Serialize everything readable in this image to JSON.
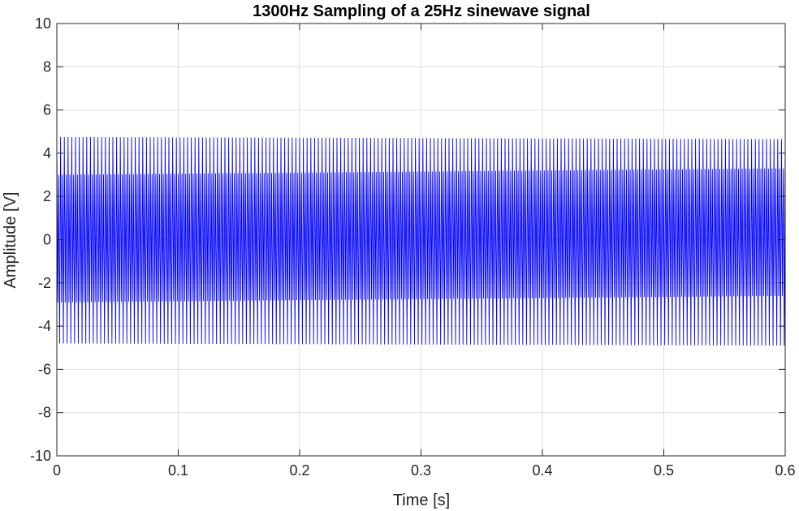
{
  "chart_data": {
    "type": "line",
    "title": "1300Hz Sampling of a 25Hz sinewave signal",
    "xlabel": "Time [s]",
    "ylabel": "Amplitude [V]",
    "xlim": [
      0,
      0.6
    ],
    "ylim": [
      -10,
      10
    ],
    "xticks": [
      0,
      0.1,
      0.2,
      0.3,
      0.4,
      0.5,
      0.6
    ],
    "xtick_labels": [
      "0",
      "0.1",
      "0.2",
      "0.3",
      "0.4",
      "0.5",
      "0.6"
    ],
    "yticks": [
      -10,
      -8,
      -6,
      -4,
      -2,
      0,
      2,
      4,
      6,
      8,
      10
    ],
    "ytick_labels": [
      "-10",
      "-8",
      "-6",
      "-4",
      "-2",
      "0",
      "2",
      "4",
      "6",
      "8",
      "10"
    ],
    "grid": true,
    "series": [
      {
        "color": "#0000ff",
        "sample_rate_hz": 1300,
        "duration_s": 0.6,
        "peak_outer_start": 4.75,
        "peak_outer_end": 4.65,
        "trough_outer_start": -4.8,
        "trough_outer_end": -4.9,
        "peak_inner_start": 3.0,
        "peak_inner_end": 3.3,
        "trough_inner_start": -2.9,
        "trough_inner_end": -2.6,
        "oscillation_count": 180
      }
    ]
  }
}
